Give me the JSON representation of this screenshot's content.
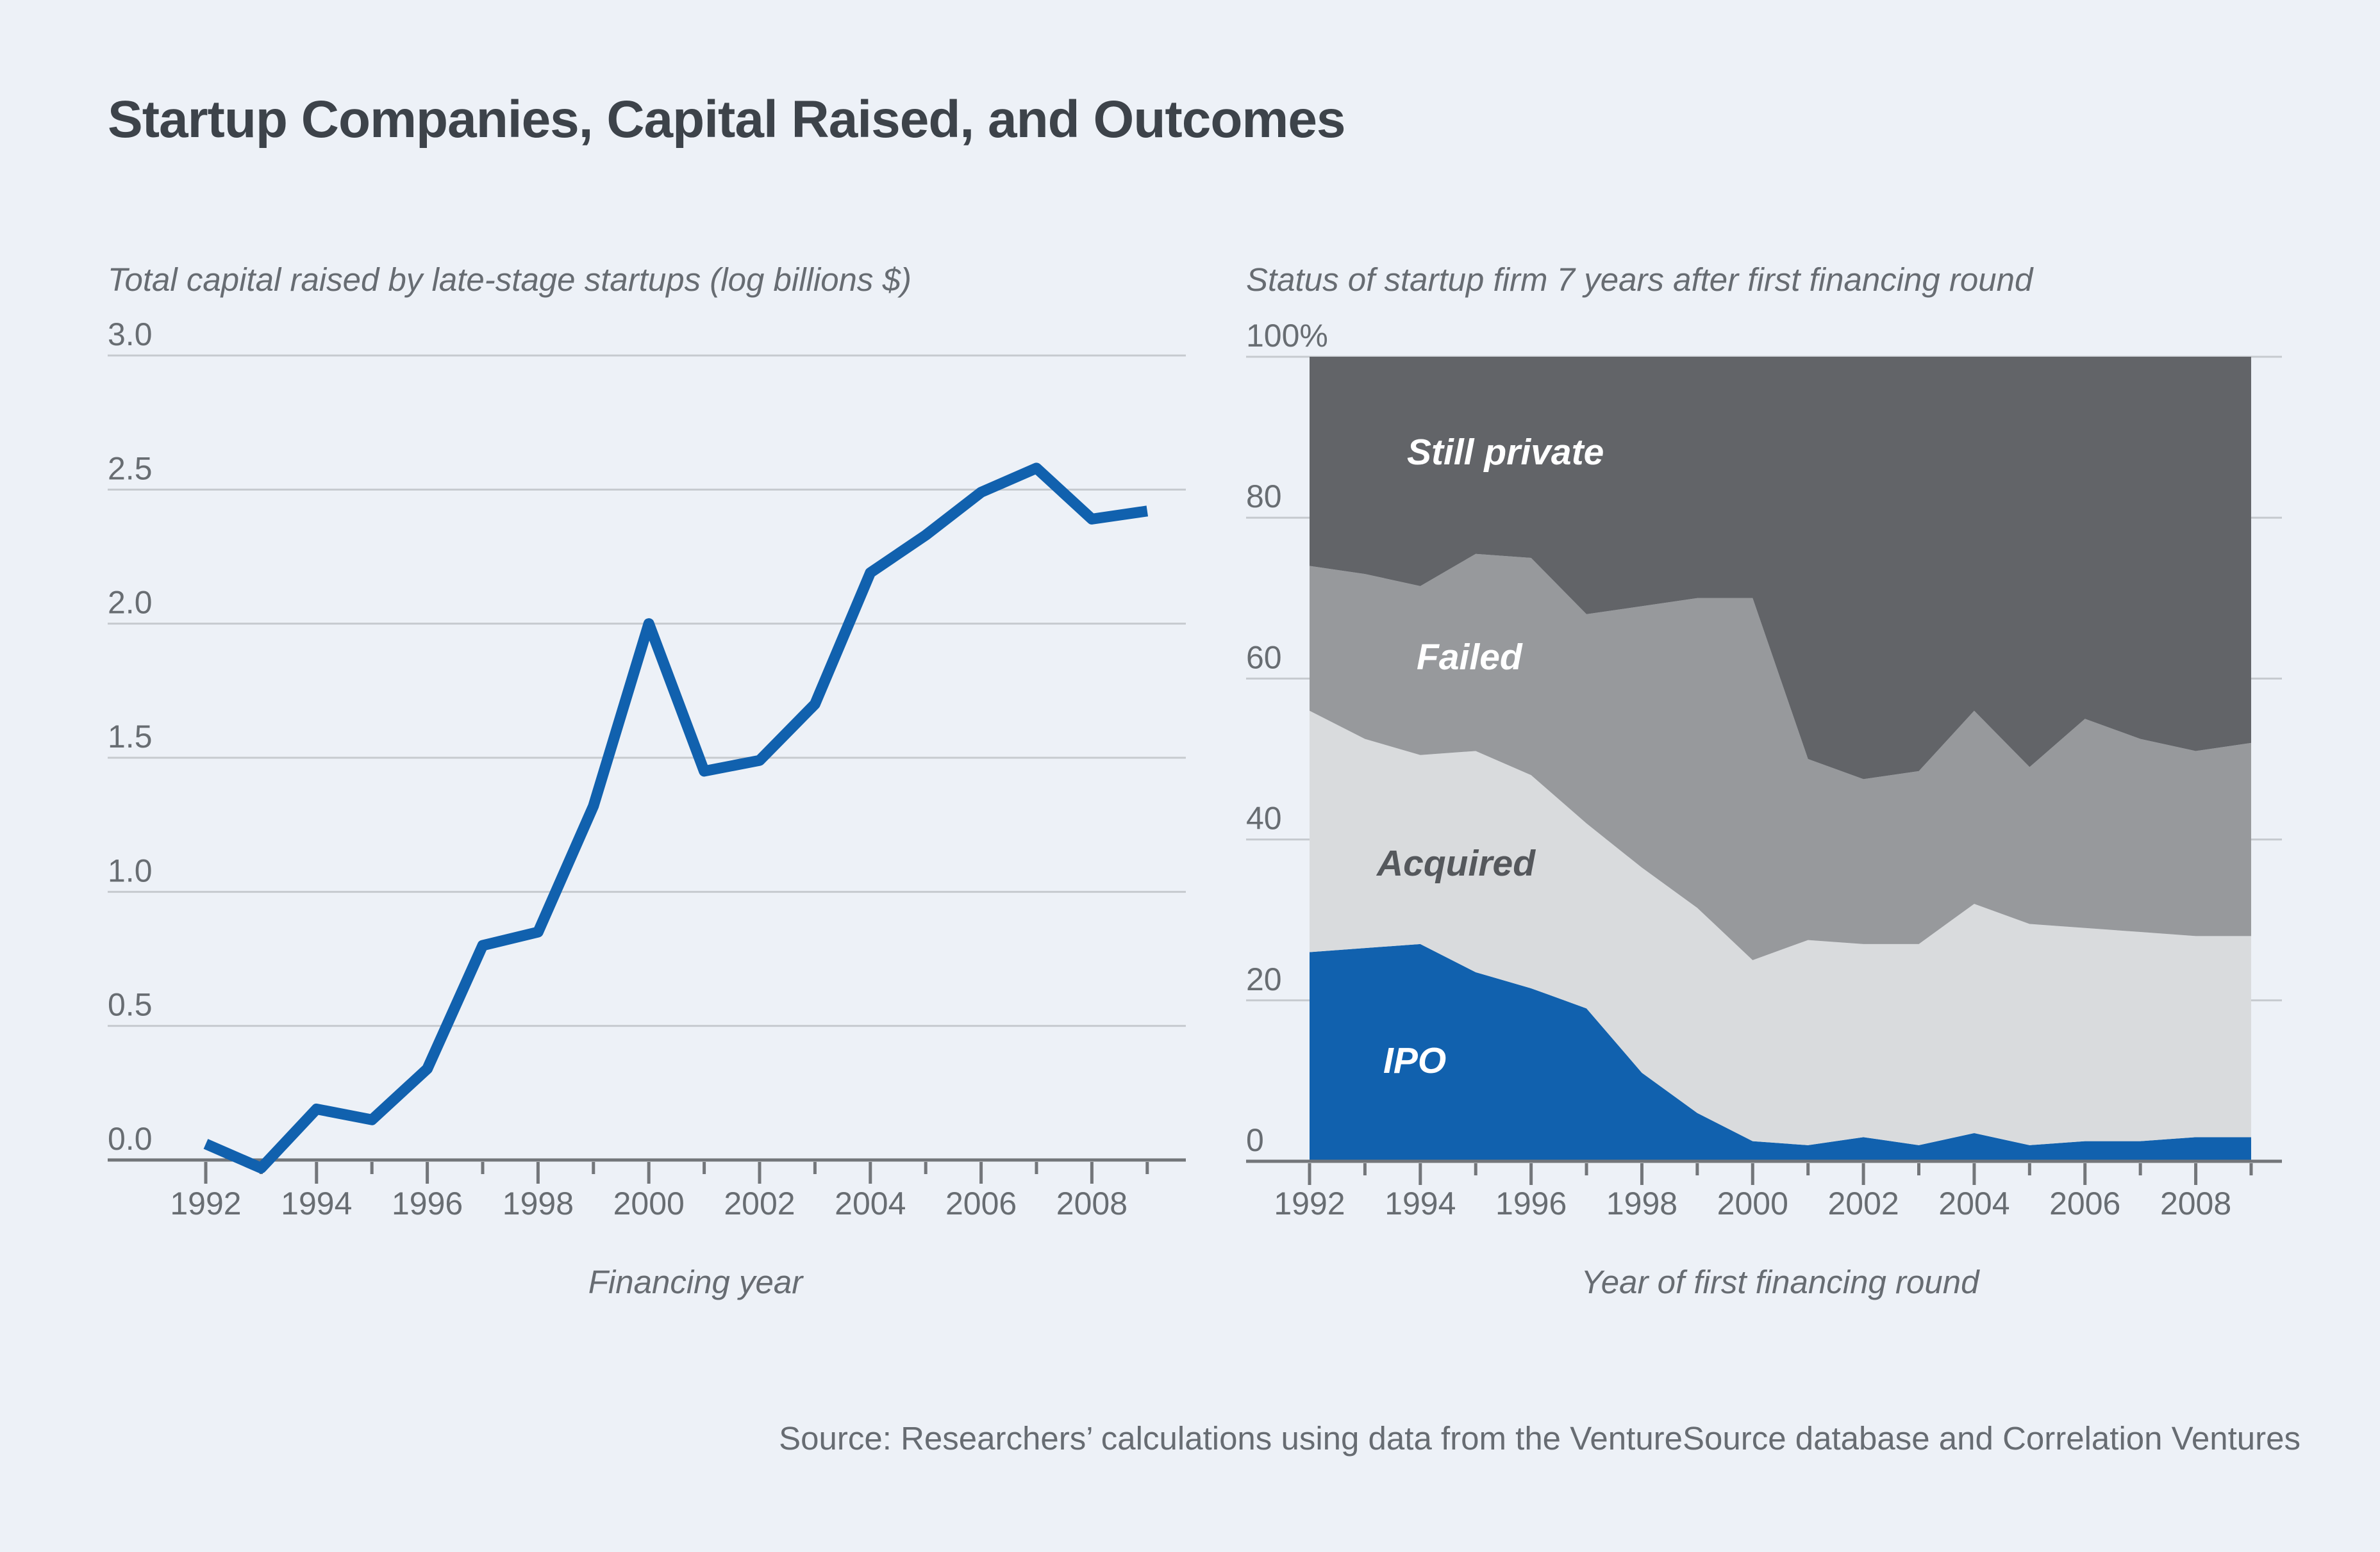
{
  "page": {
    "title": "Startup Companies, Capital Raised, and Outcomes",
    "source": "Source: Researchers’ calculations using data from the VentureSource database and Correlation Ventures",
    "background_color": "#edf1f7"
  },
  "chart_data": [
    {
      "type": "line",
      "title": "Total capital raised by late-stage startups (log billions $)",
      "xlabel": "Financing year",
      "x": [
        1992,
        1993,
        1994,
        1995,
        1996,
        1997,
        1998,
        1999,
        2000,
        2001,
        2002,
        2003,
        2004,
        2005,
        2006,
        2007,
        2008,
        2009
      ],
      "values": [
        0.06,
        -0.03,
        0.19,
        0.15,
        0.34,
        0.8,
        0.85,
        1.32,
        2.0,
        1.45,
        1.49,
        1.7,
        2.19,
        2.33,
        2.49,
        2.58,
        2.39,
        2.42
      ],
      "x_tick_labels": [
        1992,
        1994,
        1996,
        1998,
        2000,
        2002,
        2004,
        2006,
        2008
      ],
      "y_tick_labels": [
        "3.0",
        "2.5",
        "2.0",
        "1.5",
        "1.0",
        "0.5",
        "0.0"
      ],
      "y_tick_values": [
        3.0,
        2.5,
        2.0,
        1.5,
        1.0,
        0.5,
        0.0
      ],
      "ylim": [
        0.0,
        3.0
      ],
      "grid": true,
      "legend_position": "none",
      "line_color": "#1161ae"
    },
    {
      "type": "area",
      "title": "Status of startup firm 7 years after first financing round",
      "xlabel": "Year of first financing round",
      "x": [
        1992,
        1993,
        1994,
        1995,
        1996,
        1997,
        1998,
        1999,
        2000,
        2001,
        2002,
        2003,
        2004,
        2005,
        2006,
        2007,
        2008,
        2009
      ],
      "series": [
        {
          "name": "IPO",
          "color": "#1161ae",
          "label_color": "#ffffff",
          "values": [
            26,
            26.5,
            27,
            23.5,
            21.5,
            19,
            11,
            6,
            2.5,
            2,
            3,
            2,
            3.5,
            2,
            2.5,
            2.5,
            3,
            3
          ]
        },
        {
          "name": "Acquired",
          "color": "#d9dbdd",
          "label_color": "#55585c",
          "values": [
            30,
            26,
            23.5,
            27.5,
            26.5,
            23,
            25.5,
            25.5,
            22.5,
            25.5,
            24,
            25,
            28.5,
            27.5,
            26.5,
            26,
            25,
            25
          ]
        },
        {
          "name": "Failed",
          "color": "#97999c",
          "label_color": "#ffffff",
          "values": [
            18,
            20.5,
            21,
            24.5,
            27,
            26,
            32.5,
            38.5,
            45,
            22.5,
            20.5,
            21.5,
            24,
            19.5,
            26,
            24,
            23,
            24
          ]
        },
        {
          "name": "Still private",
          "color": "#626468",
          "label_color": "#ffffff",
          "values": [
            26,
            27,
            28.5,
            24.5,
            25,
            32,
            31,
            30,
            30,
            50,
            52.5,
            51.5,
            44,
            51,
            45,
            47.5,
            49,
            48
          ]
        }
      ],
      "x_tick_labels": [
        1992,
        1994,
        1996,
        1998,
        2000,
        2002,
        2004,
        2006,
        2008
      ],
      "y_tick_labels": [
        "100%",
        "80",
        "60",
        "40",
        "20",
        "0"
      ],
      "y_tick_values": [
        100,
        80,
        60,
        40,
        20,
        0
      ],
      "ylim": [
        0,
        100
      ],
      "grid": true,
      "legend_position": "labels-inside"
    }
  ]
}
